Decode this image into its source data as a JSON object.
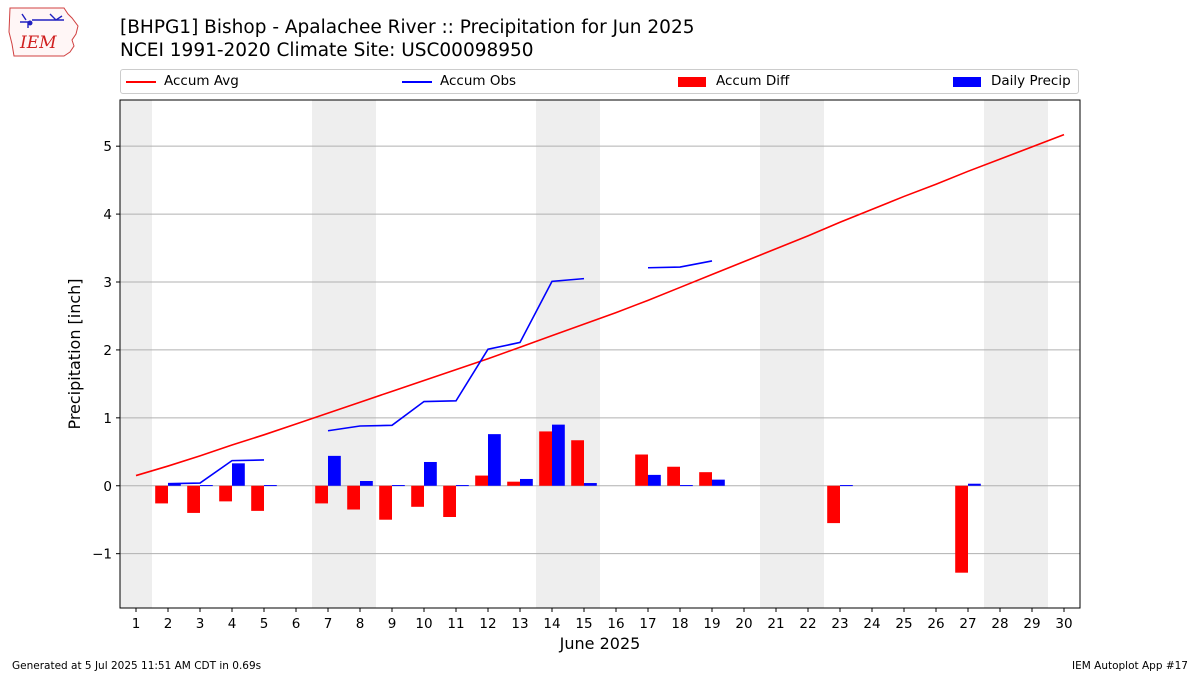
{
  "logo": {
    "text": "IEM"
  },
  "header": {
    "title_line1": "[BHPG1] Bishop - Apalachee River :: Precipitation for Jun 2025",
    "title_line2": "NCEI 1991-2020 Climate Site: USC00098950"
  },
  "legend": {
    "position": "top, above plot",
    "items": [
      {
        "label": "Accum Avg",
        "kind": "line",
        "color": "#ff0000"
      },
      {
        "label": "Accum Obs",
        "kind": "line",
        "color": "#0000ff"
      },
      {
        "label": "Accum Diff",
        "kind": "bar",
        "color": "#ff0000"
      },
      {
        "label": "Daily Precip",
        "kind": "bar",
        "color": "#0000ff"
      }
    ]
  },
  "footer": {
    "left": "Generated at 5 Jul 2025 11:51 AM CDT in 0.69s",
    "right": "IEM Autoplot App #17"
  },
  "chart_data": {
    "type": "bar",
    "xlabel": "June 2025",
    "ylabel": "Precipitation [inch]",
    "xlim": [
      0.5,
      30.5
    ],
    "ylim": [
      -1.8,
      5.68
    ],
    "yticks": [
      -1,
      0,
      1,
      2,
      3,
      4,
      5
    ],
    "ytick_labels": [
      "−1",
      "0",
      "1",
      "2",
      "3",
      "4",
      "5"
    ],
    "x": [
      1,
      2,
      3,
      4,
      5,
      6,
      7,
      8,
      9,
      10,
      11,
      12,
      13,
      14,
      15,
      16,
      17,
      18,
      19,
      20,
      21,
      22,
      23,
      24,
      25,
      26,
      27,
      28,
      29,
      30
    ],
    "grid": "horizontal",
    "weekend_shading": [
      [
        0.5,
        1.5
      ],
      [
        6.5,
        8.5
      ],
      [
        13.5,
        15.5
      ],
      [
        20.5,
        22.5
      ],
      [
        27.5,
        29.5
      ]
    ],
    "series": [
      {
        "name": "Accum Avg",
        "type": "line",
        "color": "#ff0000",
        "values": [
          0.15,
          0.29,
          0.44,
          0.6,
          0.75,
          0.91,
          1.07,
          1.23,
          1.39,
          1.55,
          1.71,
          1.87,
          2.04,
          2.21,
          2.38,
          2.55,
          2.73,
          2.92,
          3.11,
          3.3,
          3.49,
          3.68,
          3.88,
          4.07,
          4.26,
          4.44,
          4.63,
          4.81,
          4.99,
          5.17
        ]
      },
      {
        "name": "Accum Obs",
        "type": "line",
        "color": "#0000ff",
        "values": [
          null,
          0.03,
          0.04,
          0.37,
          0.38,
          null,
          0.81,
          0.88,
          0.89,
          1.24,
          1.25,
          2.01,
          2.11,
          3.01,
          3.05,
          null,
          3.21,
          3.22,
          3.31,
          null,
          null,
          null,
          null,
          null,
          null,
          null,
          null,
          null,
          null,
          null
        ]
      },
      {
        "name": "Accum Diff",
        "type": "bar",
        "color": "#ff0000",
        "values": [
          null,
          -0.26,
          -0.4,
          -0.23,
          -0.37,
          null,
          -0.26,
          -0.35,
          -0.5,
          -0.31,
          -0.46,
          0.15,
          0.06,
          0.8,
          0.67,
          null,
          0.46,
          0.28,
          0.2,
          null,
          null,
          null,
          -0.55,
          null,
          null,
          null,
          -1.28,
          null,
          null,
          null
        ]
      },
      {
        "name": "Daily Precip",
        "type": "bar",
        "color": "#0000ff",
        "values": [
          null,
          0.03,
          0.01,
          0.33,
          0.01,
          null,
          0.44,
          0.07,
          0.01,
          0.35,
          0.01,
          0.76,
          0.1,
          0.9,
          0.04,
          null,
          0.16,
          0.01,
          0.09,
          null,
          null,
          null,
          0.01,
          null,
          null,
          null,
          0.03,
          null,
          null,
          null
        ]
      }
    ]
  }
}
